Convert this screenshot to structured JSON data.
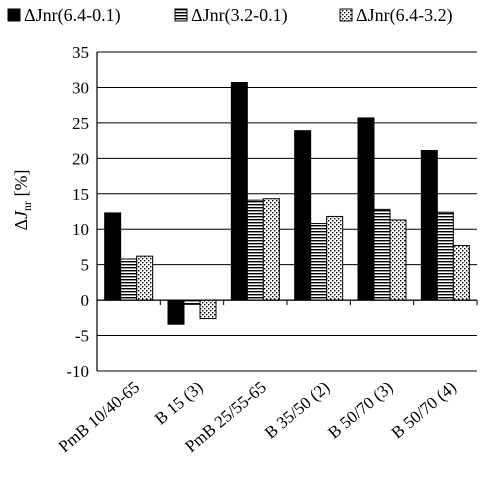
{
  "chart_data": {
    "type": "bar",
    "categories": [
      "PmB 10/40-65",
      "B 15 (3)",
      "PmB 25/55-65",
      "B 35/50 (2)",
      "B 50/70 (3)",
      "B 50/70 (4)"
    ],
    "series": [
      {
        "name": "ΔJnr(6.4-0.1)",
        "values": [
          12.3,
          -3.4,
          30.7,
          23.9,
          25.7,
          21.1
        ],
        "pattern": "solid"
      },
      {
        "name": "ΔJnr(3.2-0.1)",
        "values": [
          5.8,
          -0.6,
          14.1,
          10.8,
          12.8,
          12.4
        ],
        "pattern": "horizontal-lines"
      },
      {
        "name": "ΔJnr(6.4-3.2)",
        "values": [
          6.2,
          -2.6,
          14.3,
          11.8,
          11.3,
          7.7
        ],
        "pattern": "dots"
      }
    ],
    "ylabel_prefix": "Δ",
    "ylabel_var": "J",
    "ylabel_sub": "nr",
    "ylabel_unit": "[%]",
    "ylim": [
      -10,
      35
    ],
    "yticks": [
      "-10",
      "-5",
      "0",
      "5",
      "10",
      "15",
      "20",
      "25",
      "30",
      "35"
    ],
    "grid": true,
    "legend_position": "top"
  }
}
